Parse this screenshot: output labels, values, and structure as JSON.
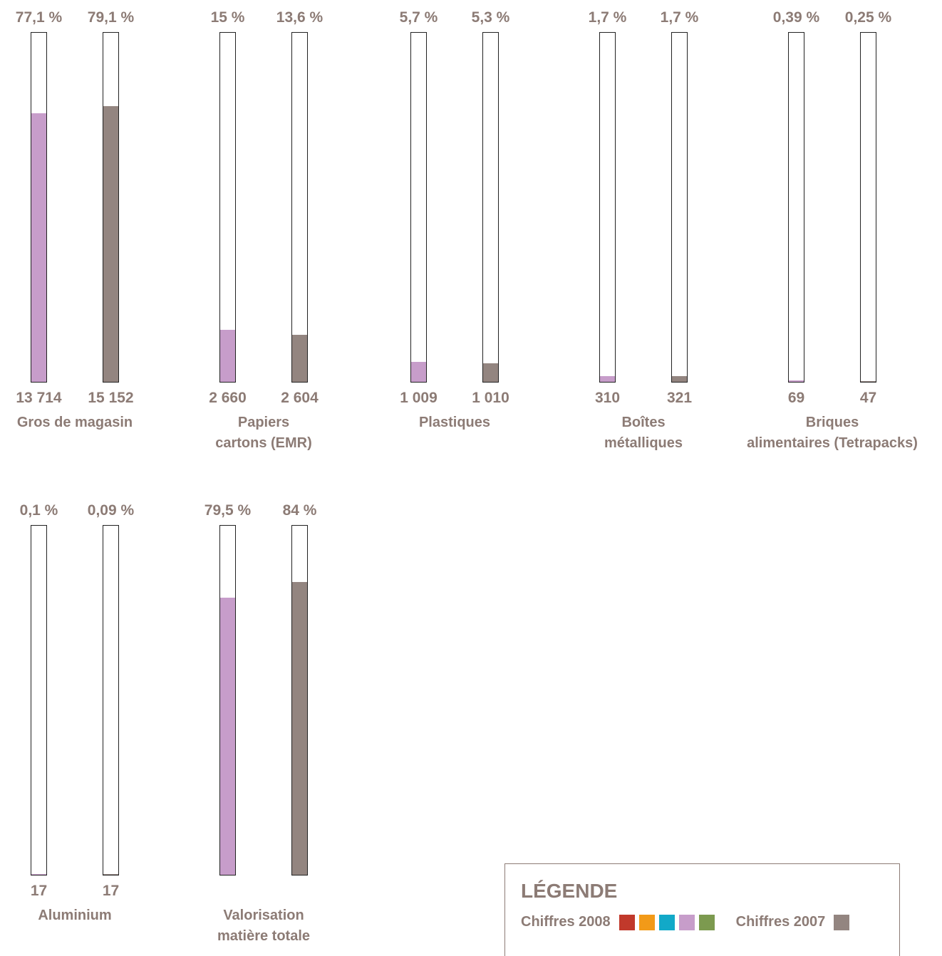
{
  "chart_data": {
    "type": "bar",
    "ylim": [
      0,
      100
    ],
    "series": [
      {
        "name": "Chiffres 2008"
      },
      {
        "name": "Chiffres 2007"
      }
    ],
    "groups": [
      {
        "label": "Gros de magasin",
        "bars": [
          {
            "pct_label": "77,1 %",
            "value": 77.1,
            "tonnage": "13 714"
          },
          {
            "pct_label": "79,1 %",
            "value": 79.1,
            "tonnage": "15 152"
          }
        ]
      },
      {
        "label": "Papiers cartons (EMR)",
        "bars": [
          {
            "pct_label": "15 %",
            "value": 15,
            "tonnage": "2 660"
          },
          {
            "pct_label": "13,6 %",
            "value": 13.6,
            "tonnage": "2 604"
          }
        ]
      },
      {
        "label": "Plastiques",
        "bars": [
          {
            "pct_label": "5,7 %",
            "value": 5.7,
            "tonnage": "1 009"
          },
          {
            "pct_label": "5,3 %",
            "value": 5.3,
            "tonnage": "1 010"
          }
        ]
      },
      {
        "label": "Boîtes métalliques",
        "bars": [
          {
            "pct_label": "1,7 %",
            "value": 1.7,
            "tonnage": "310"
          },
          {
            "pct_label": "1,7 %",
            "value": 1.7,
            "tonnage": "321"
          }
        ]
      },
      {
        "label": "Briques alimentaires (Tetrapacks)",
        "bars": [
          {
            "pct_label": "0,39 %",
            "value": 0.39,
            "tonnage": "69"
          },
          {
            "pct_label": "0,25 %",
            "value": 0.25,
            "tonnage": "47"
          }
        ]
      },
      {
        "label": "Aluminium",
        "bars": [
          {
            "pct_label": "0,1 %",
            "value": 0.1,
            "tonnage": "17"
          },
          {
            "pct_label": "0,09 %",
            "value": 0.09,
            "tonnage": "17"
          }
        ]
      },
      {
        "label": "Valorisation matière totale",
        "bars": [
          {
            "pct_label": "79,5 %",
            "value": 79.5,
            "tonnage": ""
          },
          {
            "pct_label": "84 %",
            "value": 84,
            "tonnage": ""
          }
        ]
      }
    ]
  },
  "colors": {
    "fill_2008": "#c79dca",
    "fill_2007": "#938580",
    "text": "#8c7b75",
    "swatches_2008": [
      "#c1392b",
      "#f29a18",
      "#12a9c8",
      "#c79dca",
      "#7c9a4f"
    ],
    "swatch_2007": "#938580"
  },
  "legend": {
    "title": "LÉGENDE",
    "label_2008": "Chiffres 2008",
    "label_2007": "Chiffres 2007"
  }
}
